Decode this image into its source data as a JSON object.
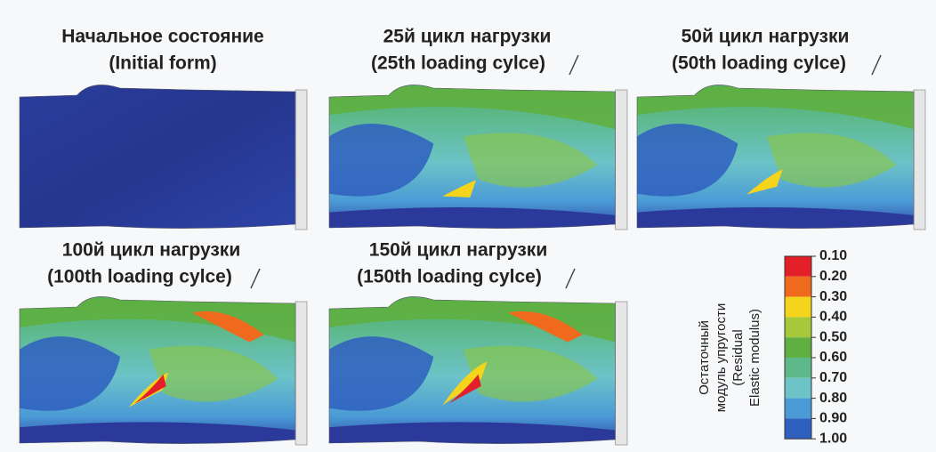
{
  "panels": [
    {
      "title": "Начальное состояние",
      "subtitle": "(Initial form)"
    },
    {
      "title": "25й цикл нагрузки",
      "subtitle": "(25th loading cylce)"
    },
    {
      "title": "50й цикл нагрузки",
      "subtitle": "(50th loading cylce)"
    },
    {
      "title": "100й цикл нагрузки",
      "subtitle": "(100th loading cylce)"
    },
    {
      "title": "150й цикл нагрузки",
      "subtitle": "(150th loading cylce)"
    }
  ],
  "colorbar": {
    "title": [
      "Остаточный",
      "модуль упругости",
      "(Residual",
      "Elastic modulus)"
    ],
    "labels": [
      "0.10",
      "0.20",
      "0.30",
      "0.40",
      "0.50",
      "0.60",
      "0.70",
      "0.80",
      "0.90",
      "1.00"
    ]
  }
}
